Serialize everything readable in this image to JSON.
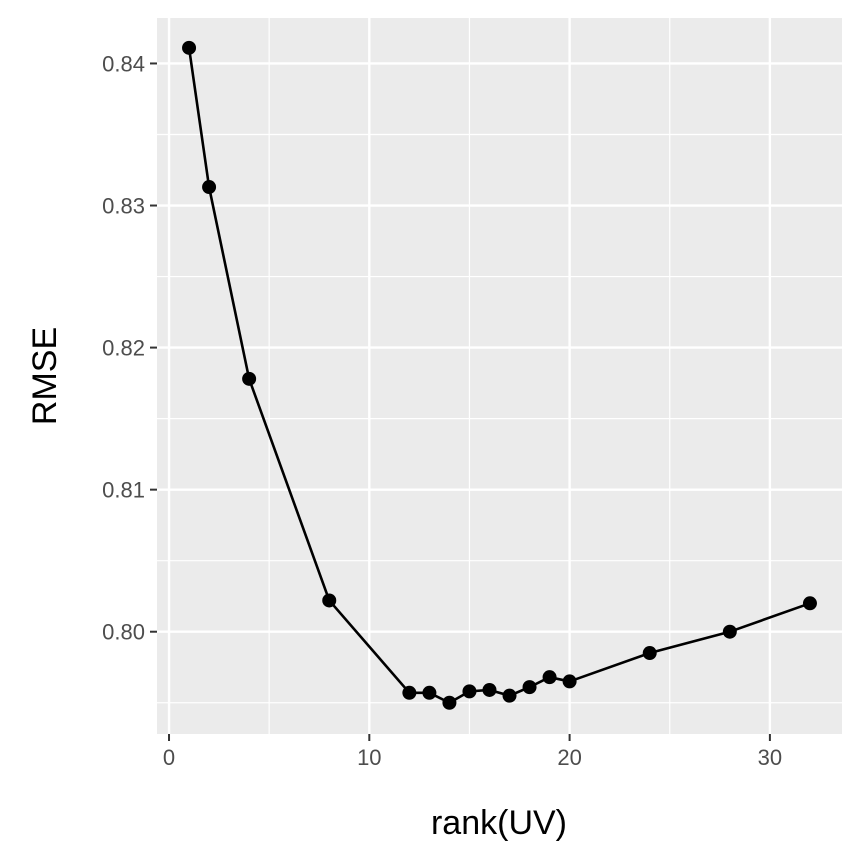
{
  "chart_data": {
    "type": "line",
    "title": "",
    "xlabel": "rank(UV)",
    "ylabel": "RMSE",
    "xlim": [
      -0.6,
      33.6
    ],
    "ylim": [
      0.7928,
      0.8432
    ],
    "x_ticks": [
      0,
      10,
      20,
      30
    ],
    "y_ticks": [
      0.8,
      0.81,
      0.82,
      0.83,
      0.84
    ],
    "x_tick_labels": [
      "0",
      "10",
      "20",
      "30"
    ],
    "y_tick_labels": [
      "0.80",
      "0.81",
      "0.82",
      "0.83",
      "0.84"
    ],
    "grid": true,
    "legend": "none",
    "series": [
      {
        "x": [
          1,
          2,
          4,
          8,
          12,
          13,
          14,
          15,
          16,
          17,
          18,
          19,
          20,
          24,
          28,
          32
        ],
        "y": [
          0.8411,
          0.8313,
          0.8178,
          0.8022,
          0.7957,
          0.7957,
          0.795,
          0.7958,
          0.7959,
          0.7955,
          0.7961,
          0.7968,
          0.7965,
          0.7985,
          0.8,
          0.802
        ]
      }
    ],
    "colors": {
      "panel": "#ebebeb",
      "grid_major": "#ffffff",
      "line": "#000000",
      "point": "#000000",
      "tick": "#333333"
    }
  }
}
